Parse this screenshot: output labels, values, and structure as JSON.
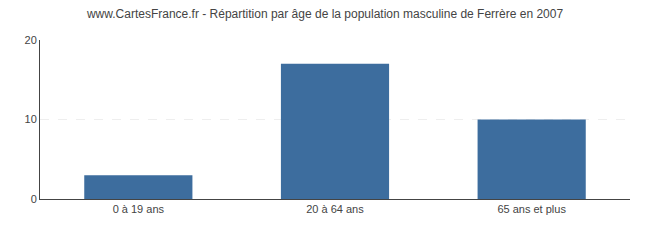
{
  "chart_data": {
    "type": "bar",
    "title": "www.CartesFrance.fr - Répartition par âge de la population masculine de Ferrère en 2007",
    "categories": [
      "0 à 19 ans",
      "20 à 64 ans",
      "65 ans et plus"
    ],
    "values": [
      3,
      17,
      10
    ],
    "color": "#3d6d9e",
    "ylim": [
      0,
      20
    ],
    "yticks": [
      0,
      10,
      20
    ],
    "grid": true
  }
}
